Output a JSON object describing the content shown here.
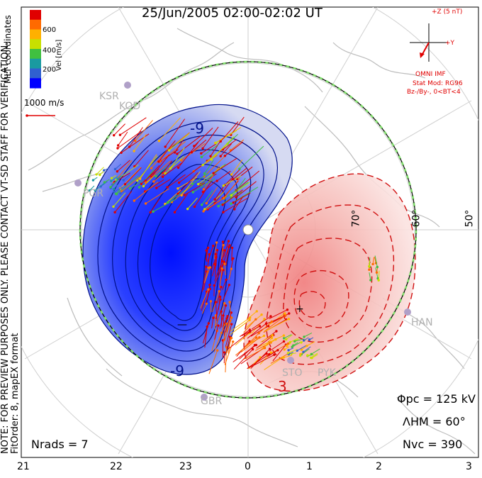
{
  "title": "25/Jun/2005 02:00-02:02 UT",
  "coord_label": "MLT coordinates",
  "velocity_scale": "1000 m/s",
  "colorbar": {
    "label": "Vel [m/s]",
    "ticks": [
      "600",
      "400",
      "200"
    ],
    "colors": [
      "#e00000",
      "#ff6a00",
      "#ffb000",
      "#c8e000",
      "#40c040",
      "#1a9aa0",
      "#3060d0",
      "#0000ff"
    ]
  },
  "note_lines": [
    "NOTE: FOR PREVIEW PURPOSES ONLY. PLEASE CONTACT VT-SD STAFF FOR VERIFICATION.",
    "FitOrder: 8, mapEX format"
  ],
  "imf": {
    "z_label": "+Z (5 nT)",
    "y_label": "+Y",
    "source": "OMNI IMF",
    "model": "Stat Mod: RG96",
    "condition": "Bz-/By-, 0<BT<4"
  },
  "stats": {
    "phi_pc": "Φpc = 125 kV",
    "lambda_hm": "ΛHM = 60°",
    "n_vc": "Nvc = 390",
    "n_rads": "Nrads = 7"
  },
  "mlt_ticks": [
    "21",
    "22",
    "23",
    "0",
    "1",
    "2",
    "3"
  ],
  "latitude_labels": [
    "70°",
    "60°",
    "50°"
  ],
  "radar_sites": [
    "KSR",
    "KOD",
    "PGR",
    "HAN",
    "STO",
    "PYK",
    "GBR"
  ],
  "contour_labels": [
    "-9",
    "-9",
    "3"
  ]
}
